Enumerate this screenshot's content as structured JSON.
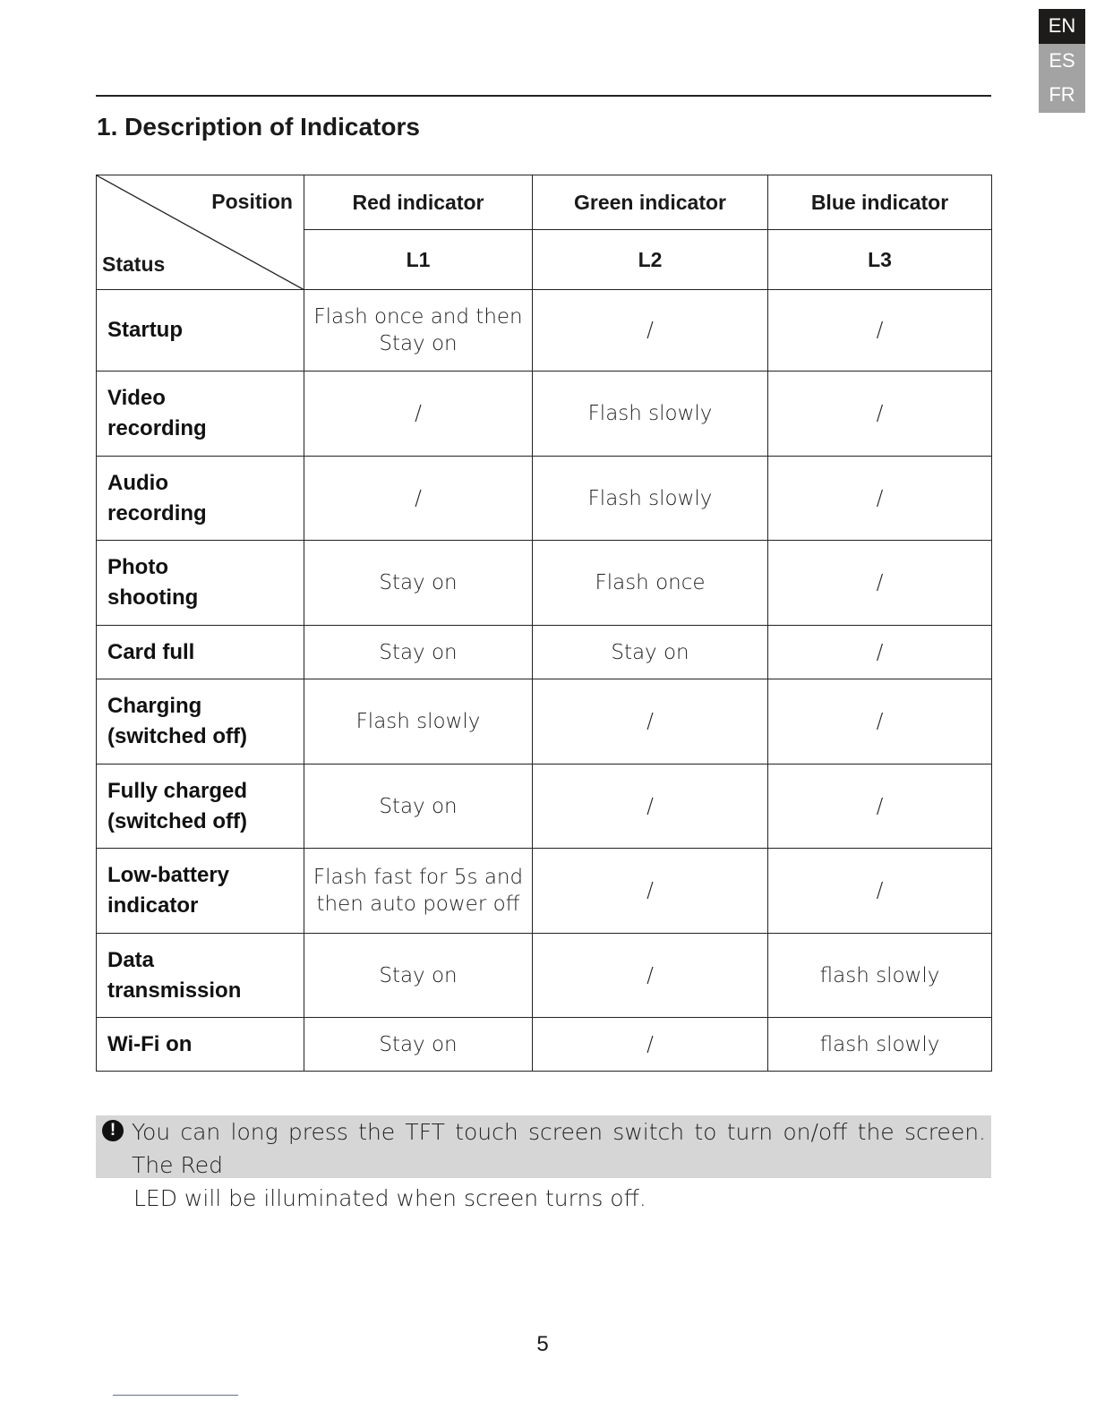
{
  "language_tabs": [
    {
      "label": "EN",
      "active": true
    },
    {
      "label": "ES",
      "active": false
    },
    {
      "label": "FR",
      "active": false
    }
  ],
  "section_title": "1. Description of Indicators",
  "table": {
    "corner_position": "Position",
    "corner_status": "Status",
    "columns": [
      {
        "name": "Red indicator",
        "code": "L1"
      },
      {
        "name": "Green indicator",
        "code": "L2"
      },
      {
        "name": "Blue indicator",
        "code": "L3"
      }
    ],
    "rows": [
      {
        "status": [
          "Startup"
        ],
        "l1": [
          "Flash once and then",
          "Stay on"
        ],
        "l2": [
          "/"
        ],
        "l3": [
          "/"
        ]
      },
      {
        "status": [
          "Video",
          "recording"
        ],
        "l1": [
          "/"
        ],
        "l2": [
          "Flash slowly"
        ],
        "l3": [
          "/"
        ]
      },
      {
        "status": [
          "Audio",
          "recording"
        ],
        "l1": [
          "/"
        ],
        "l2": [
          "Flash slowly"
        ],
        "l3": [
          "/"
        ]
      },
      {
        "status": [
          "Photo",
          "shooting"
        ],
        "l1": [
          "Stay on"
        ],
        "l2": [
          "Flash once"
        ],
        "l3": [
          "/"
        ]
      },
      {
        "status": [
          "Card full"
        ],
        "l1": [
          "Stay on"
        ],
        "l2": [
          "Stay on"
        ],
        "l3": [
          "/"
        ]
      },
      {
        "status": [
          "Charging",
          "(switched off)"
        ],
        "l1": [
          "Flash slowly"
        ],
        "l2": [
          "/"
        ],
        "l3": [
          "/"
        ]
      },
      {
        "status": [
          "Fully charged",
          "(switched off)"
        ],
        "l1": [
          "Stay on"
        ],
        "l2": [
          "/"
        ],
        "l3": [
          "/"
        ]
      },
      {
        "status": [
          "Low-battery",
          "indicator"
        ],
        "l1": [
          "Flash fast for 5s and",
          "then auto power off"
        ],
        "l2": [
          "/"
        ],
        "l3": [
          "/"
        ]
      },
      {
        "status": [
          "Data",
          "transmission"
        ],
        "l1": [
          "Stay on"
        ],
        "l2": [
          "/"
        ],
        "l3": [
          "flash slowly"
        ]
      },
      {
        "status": [
          "Wi-Fi on"
        ],
        "l1": [
          "Stay on"
        ],
        "l2": [
          "/"
        ],
        "l3": [
          "flash slowly"
        ]
      }
    ]
  },
  "note": {
    "icon": "exclamation-circle-icon",
    "line1": "You can long press the TFT touch screen switch to turn on/off the screen. The Red",
    "line2": "LED will be illuminated when screen turns off."
  },
  "page_number": "5"
}
